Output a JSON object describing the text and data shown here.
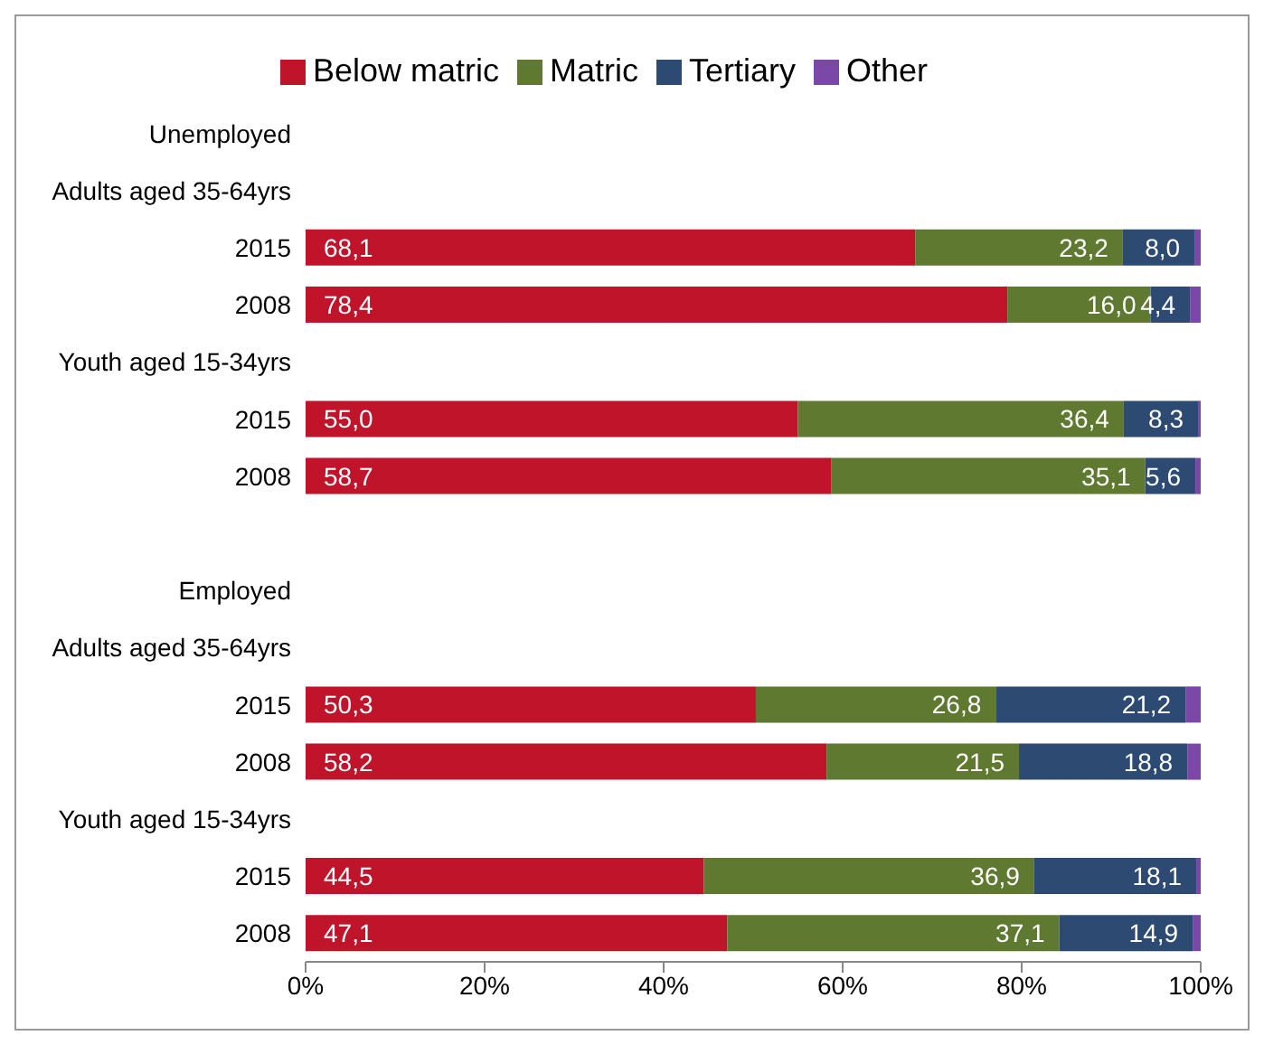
{
  "chart_data": {
    "type": "bar",
    "orientation": "horizontal",
    "stacked": true,
    "categories": [
      "Unemployed",
      "Adults aged 35-64yrs",
      "2015",
      "2008",
      "Youth aged 15-34yrs",
      "2015",
      "2008",
      null,
      "Employed",
      "Adults aged 35-64yrs",
      "2015",
      "2008",
      "Youth aged 15-34yrs",
      "2015",
      "2008"
    ],
    "series": [
      {
        "name": "Below matric",
        "color": "#c0142a",
        "values": [
          null,
          null,
          68.1,
          78.4,
          null,
          55.0,
          58.7,
          null,
          null,
          null,
          50.3,
          58.2,
          null,
          44.5,
          47.1
        ],
        "value_labels": [
          null,
          null,
          "68,1",
          "78,4",
          null,
          "55,0",
          "58,7",
          null,
          null,
          null,
          "50,3",
          "58,2",
          null,
          "44,5",
          "47,1"
        ]
      },
      {
        "name": "Matric",
        "color": "#5f7a30",
        "values": [
          null,
          null,
          23.2,
          16.0,
          null,
          36.4,
          35.1,
          null,
          null,
          null,
          26.8,
          21.5,
          null,
          36.9,
          37.1
        ],
        "value_labels": [
          null,
          null,
          "23,2",
          "16,0",
          null,
          "36,4",
          "35,1",
          null,
          null,
          null,
          "26,8",
          "21,5",
          null,
          "36,9",
          "37,1"
        ]
      },
      {
        "name": "Tertiary",
        "color": "#2c4a72",
        "values": [
          null,
          null,
          8.0,
          4.4,
          null,
          8.3,
          5.6,
          null,
          null,
          null,
          21.2,
          18.8,
          null,
          18.1,
          14.9
        ],
        "value_labels": [
          null,
          null,
          "8,0",
          "4,4",
          null,
          "8,3",
          "5,6",
          null,
          null,
          null,
          "21,2",
          "18,8",
          null,
          "18,1",
          "14,9"
        ]
      },
      {
        "name": "Other",
        "color": "#7b48a8",
        "values": [
          null,
          null,
          0.7,
          1.2,
          null,
          0.3,
          0.6,
          null,
          null,
          null,
          1.7,
          1.5,
          null,
          0.5,
          0.9
        ],
        "value_labels": [
          null,
          null,
          null,
          null,
          null,
          null,
          null,
          null,
          null,
          null,
          null,
          null,
          null,
          null,
          null
        ]
      }
    ],
    "xlim": [
      0,
      100
    ],
    "xticks": [
      {
        "value": 0,
        "label": "0%"
      },
      {
        "value": 20,
        "label": "20%"
      },
      {
        "value": 40,
        "label": "40%"
      },
      {
        "value": 60,
        "label": "60%"
      },
      {
        "value": 80,
        "label": "80%"
      },
      {
        "value": 100,
        "label": "100%"
      }
    ],
    "grid": false,
    "legend": "top"
  }
}
